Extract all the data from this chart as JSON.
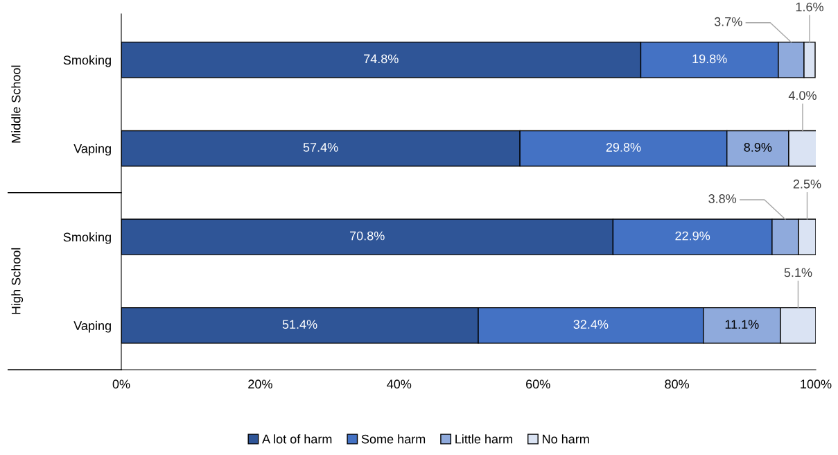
{
  "chart_data": {
    "type": "bar",
    "orientation": "horizontal",
    "stacked": true,
    "categories": [
      "Smoking",
      "Vaping",
      "Smoking",
      "Vaping"
    ],
    "annotations": [
      "Middle School",
      "High School"
    ],
    "series": [
      {
        "name": "A lot of harm",
        "color": "#2f5597",
        "values": [
          74.8,
          57.4,
          70.8,
          51.4
        ],
        "value_labels": [
          "74.8%",
          "57.4%",
          "70.8%",
          "51.4%"
        ]
      },
      {
        "name": "Some harm",
        "color": "#4472c4",
        "values": [
          19.8,
          29.8,
          22.9,
          32.4
        ],
        "value_labels": [
          "19.8%",
          "29.8%",
          "22.9%",
          "32.4%"
        ]
      },
      {
        "name": "Little harm",
        "color": "#8faadc",
        "values": [
          3.7,
          8.9,
          3.8,
          11.1
        ],
        "value_labels": [
          "3.7%",
          "8.9%",
          "3.8%",
          "11.1%"
        ]
      },
      {
        "name": "No harm",
        "color": "#dae3f3",
        "values": [
          1.6,
          4.0,
          2.5,
          5.1
        ],
        "value_labels": [
          "1.6%",
          "4.0%",
          "2.5%",
          "5.1%"
        ]
      }
    ],
    "xlim": [
      0,
      100
    ],
    "xticks": [
      {
        "value": 0,
        "label": "0%"
      },
      {
        "value": 20,
        "label": "20%"
      },
      {
        "value": 40,
        "label": "40%"
      },
      {
        "value": 60,
        "label": "60%"
      },
      {
        "value": 80,
        "label": "80%"
      },
      {
        "value": 100,
        "label": "100%"
      }
    ],
    "grid": false,
    "legend": "bottom"
  }
}
